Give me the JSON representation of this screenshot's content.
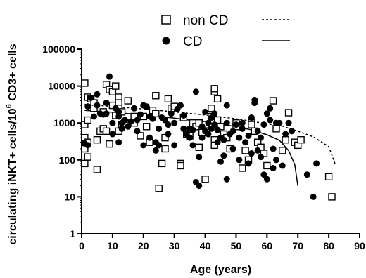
{
  "chart_data": {
    "type": "scatter",
    "xlabel": "Age (years)",
    "ylabel": "circulating iNKT+ cells/10",
    "ylabel_sup": "6",
    "ylabel_tail": " CD3+ cells",
    "xlim": [
      0,
      90
    ],
    "ylim": [
      1,
      100000
    ],
    "y_scale": "log",
    "x_ticks": [
      0,
      10,
      20,
      30,
      40,
      50,
      60,
      70,
      80,
      90
    ],
    "y_ticks": [
      1,
      10,
      100,
      1000,
      10000,
      100000
    ],
    "y_tick_labels": [
      "1",
      "10",
      "100",
      "1000",
      "10000",
      "100000"
    ],
    "grid": false,
    "legend_position": "top-center",
    "legend": [
      {
        "label": "non CD",
        "marker": "open-square",
        "line": "dashed"
      },
      {
        "label": "CD",
        "marker": "filled-circle",
        "line": "solid"
      }
    ],
    "series": [
      {
        "name": "non CD",
        "marker": "open-square",
        "points": [
          [
            1,
            12000
          ],
          [
            1,
            900
          ],
          [
            1,
            400
          ],
          [
            1,
            200
          ],
          [
            1,
            80
          ],
          [
            2,
            5000
          ],
          [
            2,
            1200
          ],
          [
            2,
            300
          ],
          [
            2,
            120
          ],
          [
            3,
            4500
          ],
          [
            4,
            3500
          ],
          [
            4,
            2500
          ],
          [
            5,
            55
          ],
          [
            5,
            350
          ],
          [
            6,
            600
          ],
          [
            7,
            2000
          ],
          [
            7,
            700
          ],
          [
            8,
            11000
          ],
          [
            8,
            600
          ],
          [
            9,
            8000
          ],
          [
            9,
            270
          ],
          [
            10,
            7000
          ],
          [
            10,
            3000
          ],
          [
            11,
            10000
          ],
          [
            11,
            1600
          ],
          [
            12,
            5000
          ],
          [
            12,
            3500
          ],
          [
            12,
            2500
          ],
          [
            12,
            600
          ],
          [
            13,
            900
          ],
          [
            13,
            2000
          ],
          [
            14,
            1000
          ],
          [
            15,
            4000
          ],
          [
            17,
            1500
          ],
          [
            17,
            1000
          ],
          [
            19,
            450
          ],
          [
            20,
            1500
          ],
          [
            21,
            800
          ],
          [
            22,
            300
          ],
          [
            23,
            2200
          ],
          [
            24,
            1800
          ],
          [
            24,
            5500
          ],
          [
            25,
            17
          ],
          [
            26,
            80
          ],
          [
            27,
            400
          ],
          [
            27,
            200
          ],
          [
            28,
            4500
          ],
          [
            29,
            2500
          ],
          [
            30,
            2800
          ],
          [
            32,
            80
          ],
          [
            32,
            70
          ],
          [
            33,
            1400
          ],
          [
            34,
            500
          ],
          [
            35,
            450
          ],
          [
            36,
            1000
          ],
          [
            37,
            800
          ],
          [
            38,
            1000
          ],
          [
            38,
            220
          ],
          [
            39,
            550
          ],
          [
            40,
            900
          ],
          [
            40,
            30
          ],
          [
            42,
            1500
          ],
          [
            42,
            2500
          ],
          [
            43,
            7000
          ],
          [
            43,
            8500
          ],
          [
            43,
            350
          ],
          [
            43,
            250
          ],
          [
            44,
            4500
          ],
          [
            44,
            1200
          ],
          [
            45,
            800
          ],
          [
            46,
            500
          ],
          [
            47,
            400
          ],
          [
            48,
            200
          ],
          [
            50,
            1000
          ],
          [
            50,
            800
          ],
          [
            52,
            60
          ],
          [
            53,
            180
          ],
          [
            54,
            100
          ],
          [
            55,
            1000
          ],
          [
            55,
            900
          ],
          [
            56,
            600
          ],
          [
            57,
            300
          ],
          [
            58,
            220
          ],
          [
            59,
            150
          ],
          [
            60,
            70
          ],
          [
            62,
            4000
          ],
          [
            63,
            700
          ],
          [
            65,
            180
          ],
          [
            66,
            350
          ],
          [
            67,
            1900
          ],
          [
            69,
            300
          ],
          [
            70,
            250
          ],
          [
            71,
            350
          ],
          [
            80,
            35
          ],
          [
            81,
            10
          ]
        ]
      },
      {
        "name": "CD",
        "marker": "filled-circle",
        "points": [
          [
            1,
            280
          ],
          [
            2,
            250
          ],
          [
            2,
            2800
          ],
          [
            3,
            4800
          ],
          [
            4,
            1500
          ],
          [
            5,
            6000
          ],
          [
            5,
            3000
          ],
          [
            6,
            1800
          ],
          [
            7,
            1700
          ],
          [
            8,
            1800
          ],
          [
            8,
            3500
          ],
          [
            9,
            18000
          ],
          [
            10,
            500
          ],
          [
            10,
            1000
          ],
          [
            11,
            2500
          ],
          [
            12,
            2000
          ],
          [
            12,
            1500
          ],
          [
            12,
            300
          ],
          [
            13,
            1000
          ],
          [
            13,
            700
          ],
          [
            14,
            1200
          ],
          [
            15,
            800
          ],
          [
            16,
            1100
          ],
          [
            17,
            2500
          ],
          [
            18,
            1200
          ],
          [
            18,
            600
          ],
          [
            19,
            1700
          ],
          [
            20,
            3000
          ],
          [
            20,
            250
          ],
          [
            21,
            2800
          ],
          [
            22,
            1500
          ],
          [
            22,
            400
          ],
          [
            23,
            1300
          ],
          [
            24,
            300
          ],
          [
            24,
            180
          ],
          [
            25,
            250
          ],
          [
            25,
            700
          ],
          [
            26,
            1400
          ],
          [
            27,
            1200
          ],
          [
            28,
            500
          ],
          [
            28,
            900
          ],
          [
            29,
            1800
          ],
          [
            30,
            1000
          ],
          [
            30,
            250
          ],
          [
            31,
            2400
          ],
          [
            32,
            3000
          ],
          [
            33,
            1600
          ],
          [
            33,
            700
          ],
          [
            34,
            500
          ],
          [
            35,
            700
          ],
          [
            35,
            400
          ],
          [
            36,
            650
          ],
          [
            36,
            250
          ],
          [
            37,
            7000
          ],
          [
            37,
            25
          ],
          [
            38,
            20
          ],
          [
            38,
            120
          ],
          [
            39,
            800
          ],
          [
            39,
            400
          ],
          [
            40,
            2000
          ],
          [
            40,
            600
          ],
          [
            41,
            500
          ],
          [
            41,
            1000
          ],
          [
            42,
            1400
          ],
          [
            42,
            700
          ],
          [
            43,
            900
          ],
          [
            43,
            1800
          ],
          [
            44,
            650
          ],
          [
            44,
            300
          ],
          [
            45,
            400
          ],
          [
            45,
            90
          ],
          [
            46,
            130
          ],
          [
            46,
            350
          ],
          [
            47,
            3000
          ],
          [
            47,
            1000
          ],
          [
            47,
            30
          ],
          [
            48,
            500
          ],
          [
            49,
            200
          ],
          [
            49,
            600
          ],
          [
            50,
            900
          ],
          [
            51,
            400
          ],
          [
            51,
            100
          ],
          [
            52,
            1000
          ],
          [
            52,
            700
          ],
          [
            53,
            300
          ],
          [
            54,
            450
          ],
          [
            54,
            80
          ],
          [
            55,
            150
          ],
          [
            55,
            1400
          ],
          [
            56,
            3500
          ],
          [
            56,
            4200
          ],
          [
            57,
            600
          ],
          [
            57,
            180
          ],
          [
            58,
            400
          ],
          [
            58,
            120
          ],
          [
            59,
            900
          ],
          [
            59,
            40
          ],
          [
            60,
            30
          ],
          [
            60,
            1800
          ],
          [
            61,
            2500
          ],
          [
            61,
            1200
          ],
          [
            62,
            200
          ],
          [
            62,
            60
          ],
          [
            63,
            1000
          ],
          [
            63,
            100
          ],
          [
            64,
            1000
          ],
          [
            65,
            70
          ],
          [
            66,
            500
          ],
          [
            67,
            1000
          ],
          [
            68,
            600
          ],
          [
            73,
            40
          ],
          [
            75,
            10
          ],
          [
            76,
            80
          ]
        ]
      }
    ],
    "fit_lines": [
      {
        "name": "non CD",
        "style": "dashed",
        "points": [
          [
            1,
            3200
          ],
          [
            10,
            2800
          ],
          [
            20,
            2400
          ],
          [
            30,
            2000
          ],
          [
            40,
            1650
          ],
          [
            50,
            1300
          ],
          [
            60,
            950
          ],
          [
            65,
            820
          ],
          [
            70,
            600
          ],
          [
            75,
            420
          ],
          [
            80,
            230
          ],
          [
            82,
            80
          ]
        ]
      },
      {
        "name": "CD",
        "style": "solid",
        "points": [
          [
            1,
            2200
          ],
          [
            10,
            1950
          ],
          [
            20,
            1650
          ],
          [
            30,
            1350
          ],
          [
            40,
            1050
          ],
          [
            50,
            800
          ],
          [
            55,
            650
          ],
          [
            60,
            480
          ],
          [
            64,
            340
          ],
          [
            67,
            180
          ],
          [
            69,
            75
          ],
          [
            70,
            20
          ]
        ]
      }
    ]
  }
}
